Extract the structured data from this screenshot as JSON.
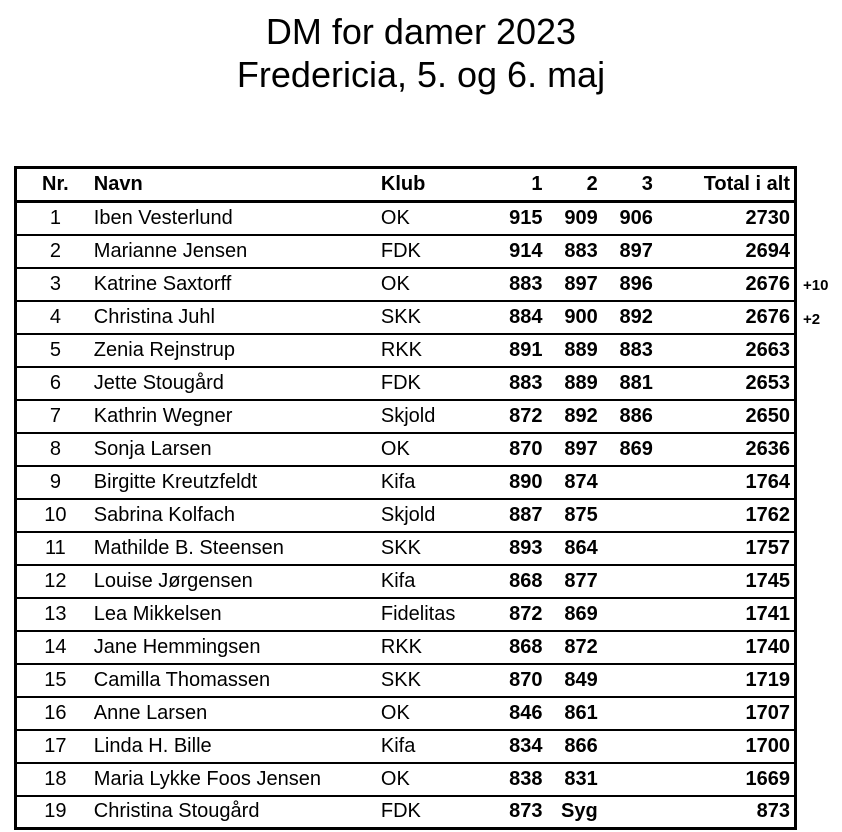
{
  "title": {
    "line1": "DM for damer 2023",
    "line2": "Fredericia, 5. og 6. maj"
  },
  "table": {
    "headers": {
      "nr": "Nr.",
      "navn": "Navn",
      "klub": "Klub",
      "game1": "1",
      "game2": "2",
      "game3": "3",
      "total": "Total i alt"
    },
    "rows": [
      {
        "nr": "1",
        "navn": "Iben Vesterlund",
        "klub": "OK",
        "game1": "915",
        "game2": "909",
        "game3": "906",
        "total": "2730",
        "note": ""
      },
      {
        "nr": "2",
        "navn": "Marianne Jensen",
        "klub": "FDK",
        "game1": "914",
        "game2": "883",
        "game3": "897",
        "total": "2694",
        "note": ""
      },
      {
        "nr": "3",
        "navn": "Katrine Saxtorff",
        "klub": "OK",
        "game1": "883",
        "game2": "897",
        "game3": "896",
        "total": "2676",
        "note": "+10"
      },
      {
        "nr": "4",
        "navn": "Christina Juhl",
        "klub": "SKK",
        "game1": "884",
        "game2": "900",
        "game3": "892",
        "total": "2676",
        "note": "+2"
      },
      {
        "nr": "5",
        "navn": "Zenia Rejnstrup",
        "klub": "RKK",
        "game1": "891",
        "game2": "889",
        "game3": "883",
        "total": "2663",
        "note": ""
      },
      {
        "nr": "6",
        "navn": "Jette Stougård",
        "klub": "FDK",
        "game1": "883",
        "game2": "889",
        "game3": "881",
        "total": "2653",
        "note": ""
      },
      {
        "nr": "7",
        "navn": "Kathrin Wegner",
        "klub": "Skjold",
        "game1": "872",
        "game2": "892",
        "game3": "886",
        "total": "2650",
        "note": ""
      },
      {
        "nr": "8",
        "navn": "Sonja Larsen",
        "klub": "OK",
        "game1": "870",
        "game2": "897",
        "game3": "869",
        "total": "2636",
        "note": ""
      },
      {
        "nr": "9",
        "navn": "Birgitte Kreutzfeldt",
        "klub": "Kifa",
        "game1": "890",
        "game2": "874",
        "game3": "",
        "total": "1764",
        "note": ""
      },
      {
        "nr": "10",
        "navn": "Sabrina Kolfach",
        "klub": "Skjold",
        "game1": "887",
        "game2": "875",
        "game3": "",
        "total": "1762",
        "note": ""
      },
      {
        "nr": "11",
        "navn": "Mathilde B. Steensen",
        "klub": "SKK",
        "game1": "893",
        "game2": "864",
        "game3": "",
        "total": "1757",
        "note": ""
      },
      {
        "nr": "12",
        "navn": "Louise Jørgensen",
        "klub": "Kifa",
        "game1": "868",
        "game2": "877",
        "game3": "",
        "total": "1745",
        "note": ""
      },
      {
        "nr": "13",
        "navn": "Lea Mikkelsen",
        "klub": "Fidelitas",
        "game1": "872",
        "game2": "869",
        "game3": "",
        "total": "1741",
        "note": ""
      },
      {
        "nr": "14",
        "navn": "Jane Hemmingsen",
        "klub": "RKK",
        "game1": "868",
        "game2": "872",
        "game3": "",
        "total": "1740",
        "note": ""
      },
      {
        "nr": "15",
        "navn": "Camilla Thomassen",
        "klub": "SKK",
        "game1": "870",
        "game2": "849",
        "game3": "",
        "total": "1719",
        "note": ""
      },
      {
        "nr": "16",
        "navn": "Anne Larsen",
        "klub": "OK",
        "game1": "846",
        "game2": "861",
        "game3": "",
        "total": "1707",
        "note": ""
      },
      {
        "nr": "17",
        "navn": "Linda H. Bille",
        "klub": "Kifa",
        "game1": "834",
        "game2": "866",
        "game3": "",
        "total": "1700",
        "note": ""
      },
      {
        "nr": "18",
        "navn": "Maria Lykke Foos Jensen",
        "klub": "OK",
        "game1": "838",
        "game2": "831",
        "game3": "",
        "total": "1669",
        "note": ""
      },
      {
        "nr": "19",
        "navn": "Christina Stougård",
        "klub": "FDK",
        "game1": "873",
        "game2": "Syg",
        "game3": "",
        "total": "873",
        "note": ""
      }
    ]
  },
  "colors": {
    "text": "#000000",
    "background": "#ffffff",
    "border": "#000000"
  }
}
